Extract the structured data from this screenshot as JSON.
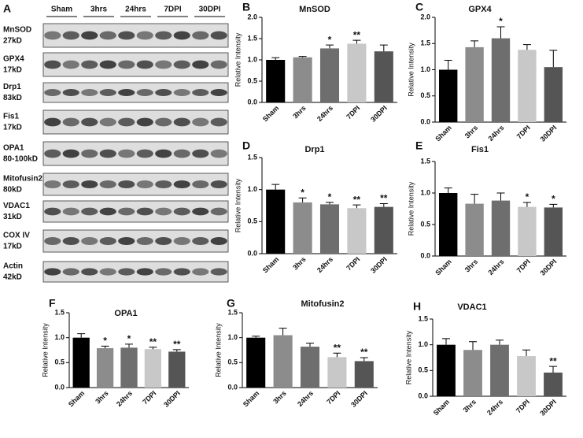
{
  "blot": {
    "panel": "A",
    "groups": [
      "Sham",
      "3hrs",
      "24hrs",
      "7DPI",
      "30DPI"
    ],
    "rows": [
      {
        "name": "MnSOD",
        "size": "27kD"
      },
      {
        "name": "GPX4",
        "size": "17kD"
      },
      {
        "name": "Drp1",
        "size": "83kD"
      },
      {
        "name": "Fis1",
        "size": "17kD"
      },
      {
        "name": "OPA1",
        "size": "80-100kD"
      },
      {
        "name": "Mitofusin2",
        "size": "80kD"
      },
      {
        "name": "VDAC1",
        "size": "31kD"
      },
      {
        "name": "COX IV",
        "size": "17kD"
      },
      {
        "name": "Actin",
        "size": "42kD"
      }
    ]
  },
  "chart_data": [
    {
      "type": "bar",
      "panel": "B",
      "title": "MnSOD",
      "ylabel": "Relative Intensity",
      "categories": [
        "Sham",
        "3hrs",
        "24hrs",
        "7DPI",
        "30DPI"
      ],
      "values": [
        1.0,
        1.06,
        1.27,
        1.38,
        1.2
      ],
      "errors": [
        0.05,
        0.02,
        0.08,
        0.08,
        0.15
      ],
      "annotations": [
        null,
        null,
        "*",
        "**",
        null
      ],
      "colors": [
        "#000000",
        "#8c8c8c",
        "#6e6e6e",
        "#c8c8c8",
        "#555555"
      ],
      "ylim": [
        0,
        2.0
      ],
      "yticks": [
        {
          "value": 0,
          "label": "0.0"
        },
        0.5,
        {
          "value": 1.0,
          "label": "1.0"
        },
        1.5,
        {
          "value": 2.0,
          "label": "2.0"
        }
      ]
    },
    {
      "type": "bar",
      "panel": "C",
      "title": "GPX4",
      "ylabel": "Relative Intensity",
      "categories": [
        "Sham",
        "3hrs",
        "24hrs",
        "7DPI",
        "30DPI"
      ],
      "values": [
        1.0,
        1.43,
        1.6,
        1.38,
        1.05
      ],
      "errors": [
        0.18,
        0.12,
        0.22,
        0.1,
        0.32
      ],
      "annotations": [
        null,
        null,
        "*",
        null,
        null
      ],
      "colors": [
        "#000000",
        "#8c8c8c",
        "#6e6e6e",
        "#c8c8c8",
        "#555555"
      ],
      "ylim": [
        0,
        2.0
      ],
      "yticks": [
        {
          "value": 0,
          "label": "0.0"
        },
        0.5,
        {
          "value": 1.0,
          "label": "1.0"
        },
        1.5,
        {
          "value": 2.0,
          "label": "2.0"
        }
      ]
    },
    {
      "type": "bar",
      "panel": "D",
      "title": "Drp1",
      "ylabel": "Relative Intensity",
      "categories": [
        "Sham",
        "3hrs",
        "24hrs",
        "7DPI",
        "30DPI"
      ],
      "values": [
        1.0,
        0.8,
        0.77,
        0.71,
        0.73
      ],
      "errors": [
        0.08,
        0.07,
        0.03,
        0.05,
        0.05
      ],
      "annotations": [
        null,
        "*",
        "*",
        "**",
        "**"
      ],
      "colors": [
        "#000000",
        "#8c8c8c",
        "#6e6e6e",
        "#c8c8c8",
        "#555555"
      ],
      "ylim": [
        0,
        1.5
      ],
      "yticks": [
        {
          "value": 0,
          "label": "0.0"
        },
        0.5,
        {
          "value": 1.0,
          "label": "1.0"
        },
        1.5
      ]
    },
    {
      "type": "bar",
      "panel": "E",
      "title": "Fis1",
      "ylabel": "Relative Intensity",
      "categories": [
        "Sham",
        "3hrs",
        "24hrs",
        "7DPI",
        "30DPI"
      ],
      "values": [
        1.0,
        0.83,
        0.88,
        0.78,
        0.77
      ],
      "errors": [
        0.08,
        0.15,
        0.12,
        0.07,
        0.05
      ],
      "annotations": [
        null,
        null,
        null,
        "*",
        "*"
      ],
      "colors": [
        "#000000",
        "#8c8c8c",
        "#6e6e6e",
        "#c8c8c8",
        "#555555"
      ],
      "ylim": [
        0,
        1.5
      ],
      "yticks": [
        {
          "value": 0,
          "label": "0.0"
        },
        0.5,
        {
          "value": 1.0,
          "label": "1.0"
        },
        1.5
      ]
    },
    {
      "type": "bar",
      "panel": "F",
      "title": "OPA1",
      "ylabel": "Relative Intensity",
      "categories": [
        "Sham",
        "3hrs",
        "24hrs",
        "7DPI",
        "30DPI"
      ],
      "values": [
        1.0,
        0.79,
        0.8,
        0.77,
        0.72
      ],
      "errors": [
        0.08,
        0.04,
        0.07,
        0.04,
        0.04
      ],
      "annotations": [
        null,
        "*",
        "*",
        "**",
        "**"
      ],
      "colors": [
        "#000000",
        "#8c8c8c",
        "#6e6e6e",
        "#c8c8c8",
        "#555555"
      ],
      "ylim": [
        0,
        1.5
      ],
      "yticks": [
        {
          "value": 0,
          "label": "0.0"
        },
        0.5,
        {
          "value": 1.0,
          "label": "1.0"
        },
        1.5
      ]
    },
    {
      "type": "bar",
      "panel": "G",
      "title": "Mitofusin2",
      "ylabel": "Relative Intensity",
      "categories": [
        "Sham",
        "3hrs",
        "24hrs",
        "7DPI",
        "30DPI"
      ],
      "values": [
        1.0,
        1.05,
        0.82,
        0.61,
        0.53
      ],
      "errors": [
        0.03,
        0.14,
        0.07,
        0.08,
        0.07
      ],
      "annotations": [
        null,
        null,
        null,
        "**",
        "**"
      ],
      "colors": [
        "#000000",
        "#8c8c8c",
        "#6e6e6e",
        "#c8c8c8",
        "#555555"
      ],
      "ylim": [
        0,
        1.5
      ],
      "yticks": [
        {
          "value": 0,
          "label": "0.0"
        },
        0.5,
        {
          "value": 1.0,
          "label": "1.0"
        },
        1.5
      ]
    },
    {
      "type": "bar",
      "panel": "H",
      "title": "VDAC1",
      "ylabel": "Relative Intensity",
      "categories": [
        "Sham",
        "3hrs",
        "24hrs",
        "7DPI",
        "30DPI"
      ],
      "values": [
        1.0,
        0.9,
        1.0,
        0.78,
        0.46
      ],
      "errors": [
        0.12,
        0.16,
        0.09,
        0.12,
        0.12
      ],
      "annotations": [
        null,
        null,
        null,
        null,
        "**"
      ],
      "colors": [
        "#000000",
        "#8c8c8c",
        "#6e6e6e",
        "#c8c8c8",
        "#555555"
      ],
      "ylim": [
        0,
        1.5
      ],
      "yticks": [
        {
          "value": 0,
          "label": "0.0"
        },
        0.5,
        {
          "value": 1.0,
          "label": "1.0"
        },
        1.5
      ]
    }
  ]
}
